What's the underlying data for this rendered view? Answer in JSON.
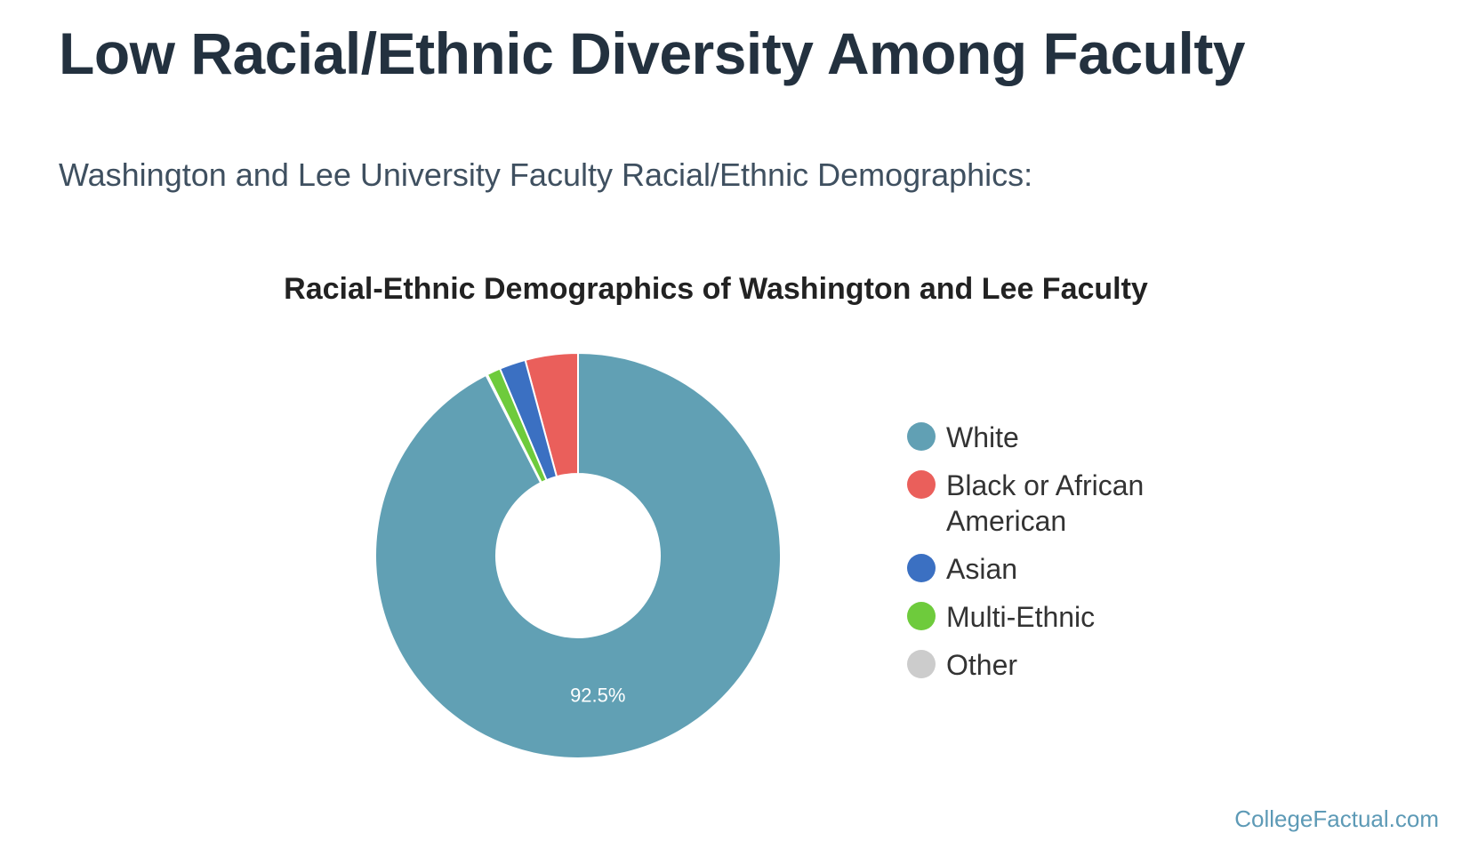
{
  "page": {
    "title": "Low Racial/Ethnic Diversity Among Faculty",
    "subtitle": "Washington and Lee University Faculty Racial/Ethnic Demographics:"
  },
  "source_credit": "CollegeFactual.com",
  "chart_data": {
    "type": "pie",
    "title": "Racial-Ethnic Demographics of Washington and Lee Faculty",
    "donut": true,
    "legend_position": "right",
    "categories": [
      "White",
      "Black or African American",
      "Asian",
      "Multi-Ethnic",
      "Other"
    ],
    "values": [
      92.5,
      4.2,
      2.1,
      1.1,
      0.1
    ],
    "colors": [
      "#61a0b4",
      "#ea5f5b",
      "#3b70c2",
      "#6ecb3c",
      "#cccccc"
    ],
    "data_labels": [
      "92.5%",
      "",
      "",
      "",
      ""
    ]
  }
}
